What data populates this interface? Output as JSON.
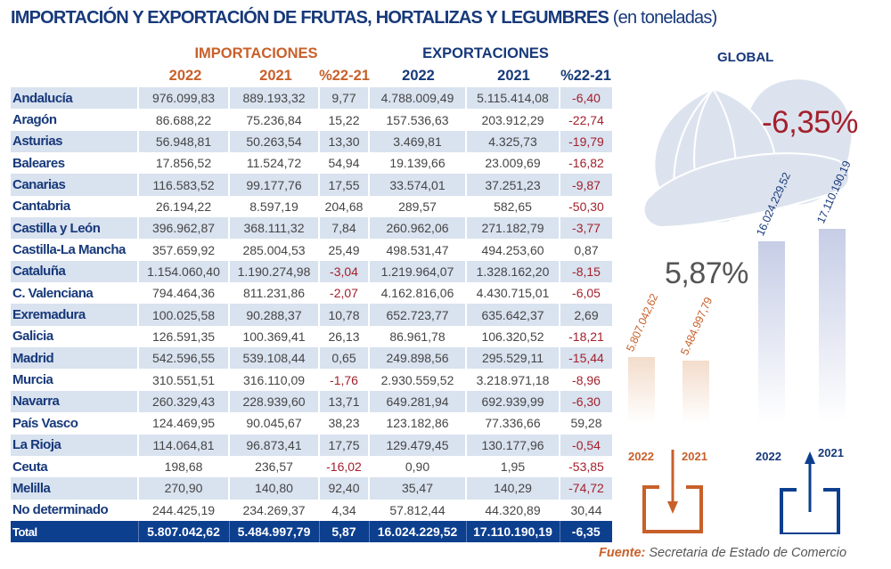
{
  "title": {
    "main": "IMPORTACIÓN Y EXPORTACIÓN DE FRUTAS, HORTALIZAS Y LEGUMBRES",
    "unit": "(en toneladas)"
  },
  "table": {
    "groups": {
      "imports": "IMPORTACIONES",
      "exports": "EXPORTACIONES"
    },
    "columns": [
      "2022",
      "2021",
      "%22-21",
      "2022",
      "2021",
      "%22-21"
    ],
    "rows": [
      [
        "Andalucía",
        "976.099,83",
        "889.193,32",
        "9,77",
        "4.788.009,49",
        "5.115.414,08",
        "-6,40"
      ],
      [
        "Aragón",
        "86.688,22",
        "75.236,84",
        "15,22",
        "157.536,63",
        "203.912,29",
        "-22,74"
      ],
      [
        "Asturias",
        "56.948,81",
        "50.263,54",
        "13,30",
        "3.469,81",
        "4.325,73",
        "-19,79"
      ],
      [
        "Baleares",
        "17.856,52",
        "11.524,72",
        "54,94",
        "19.139,66",
        "23.009,69",
        "-16,82"
      ],
      [
        "Canarias",
        "116.583,52",
        "99.177,76",
        "17,55",
        "33.574,01",
        "37.251,23",
        "-9,87"
      ],
      [
        "Cantabria",
        "26.194,22",
        "8.597,19",
        "204,68",
        "289,57",
        "582,65",
        "-50,30"
      ],
      [
        "Castilla y León",
        "396.962,87",
        "368.111,32",
        "7,84",
        "260.962,06",
        "271.182,79",
        "-3,77"
      ],
      [
        "Castilla-La Mancha",
        "357.659,92",
        "285.004,53",
        "25,49",
        "498.531,47",
        "494.253,60",
        "0,87"
      ],
      [
        "Cataluña",
        "1.154.060,40",
        "1.190.274,98",
        "-3,04",
        "1.219.964,07",
        "1.328.162,20",
        "-8,15"
      ],
      [
        "C. Valenciana",
        "794.464,36",
        "811.231,86",
        "-2,07",
        "4.162.816,06",
        "4.430.715,01",
        "-6,05"
      ],
      [
        "Exremadura",
        "100.025,58",
        "90.288,37",
        "10,78",
        "652.723,77",
        "635.642,37",
        "2,69"
      ],
      [
        "Galicia",
        "126.591,35",
        "100.369,41",
        "26,13",
        "86.961,78",
        "106.320,52",
        "-18,21"
      ],
      [
        "Madrid",
        "542.596,55",
        "539.108,44",
        "0,65",
        "249.898,56",
        "295.529,11",
        "-15,44"
      ],
      [
        "Murcia",
        "310.551,51",
        "316.110,09",
        "-1,76",
        "2.930.559,52",
        "3.218.971,18",
        "-8,96"
      ],
      [
        "Navarra",
        "260.329,43",
        "228.939,60",
        "13,71",
        "649.281,94",
        "692.939,99",
        "-6,30"
      ],
      [
        "País Vasco",
        "124.469,95",
        "90.045,67",
        "38,23",
        "123.182,86",
        "77.336,66",
        "59,28"
      ],
      [
        "La Rioja",
        "114.064,81",
        "96.873,41",
        "17,75",
        "129.479,45",
        "130.177,96",
        "-0,54"
      ],
      [
        "Ceuta",
        "198,68",
        "236,57",
        "-16,02",
        "0,90",
        "1,95",
        "-53,85"
      ],
      [
        "Melilla",
        "270,90",
        "140,80",
        "92,40",
        "35,47",
        "140,29",
        "-74,72"
      ],
      [
        "No determinado",
        "244.425,19",
        "234.269,37",
        "4,34",
        "57.812,44",
        "44.320,89",
        "30,44"
      ]
    ],
    "total": [
      "Total",
      "5.807.042,62",
      "5.484.997,79",
      "5,87",
      "16.024.229,52",
      "17.110.190,19",
      "-6,35"
    ]
  },
  "chart_data": {
    "type": "bar",
    "title": "GLOBAL",
    "groups": [
      {
        "name": "imports",
        "change_label": "5,87%",
        "color": "#c8602a",
        "bar_color": "#f3dccb",
        "icon": "import-box-arrow-down-icon",
        "categories": [
          "2022",
          "2021"
        ],
        "values": [
          5807042.62,
          5484997.79
        ],
        "labels": [
          "5.807.042,62",
          "5.484.997,79"
        ]
      },
      {
        "name": "exports",
        "change_label": "-6,35%",
        "color": "#17397a",
        "bar_color": "#c6cde6",
        "icon": "export-box-arrow-up-icon",
        "categories": [
          "2022",
          "2021"
        ],
        "values": [
          16024229.52,
          17110190.19
        ],
        "labels": [
          "16.024.229,52",
          "17.110.190,19"
        ]
      }
    ]
  },
  "colors": {
    "navy": "#17397a",
    "orange": "#c8602a",
    "negative": "#a3202c",
    "stripe": "#d9e2ef",
    "total_bg": "#0d3f8f"
  },
  "source": {
    "label": "Fuente:",
    "text": "Secretaria de Estado de Comercio"
  }
}
